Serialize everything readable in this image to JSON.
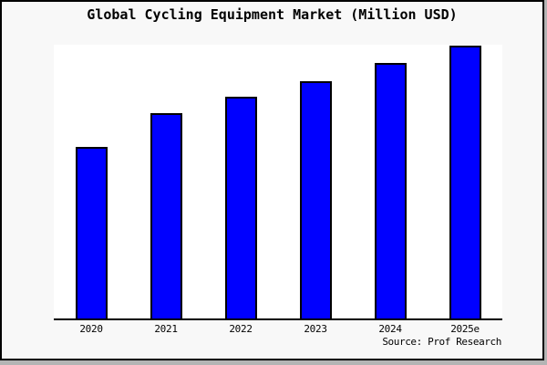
{
  "figure": {
    "title": "Global Cycling Equipment Market (Million USD)",
    "source": "Source: Prof Research",
    "background_color": "#f8f8f8",
    "plot_background_color": "#ffffff",
    "border_color": "#000000"
  },
  "chart_data": {
    "type": "bar",
    "title": "Global Cycling Equipment Market (Million USD)",
    "xlabel": "",
    "ylabel": "",
    "categories": [
      "2020",
      "2021",
      "2022",
      "2023",
      "2024",
      "2025e"
    ],
    "values": [
      189,
      227,
      245,
      262,
      282,
      301
    ],
    "values_indexed_2020_100": [
      100,
      120,
      130,
      139,
      149,
      159
    ],
    "value_basis": "chart shows no y-axis scale; values are relative bar heights read from the image",
    "ylim": [
      0,
      302
    ],
    "grid": false,
    "legend": false,
    "y_axis_shown": false,
    "bar_color": "#0000ff",
    "bar_border_color": "#000000",
    "source": "Source: Prof Research"
  }
}
